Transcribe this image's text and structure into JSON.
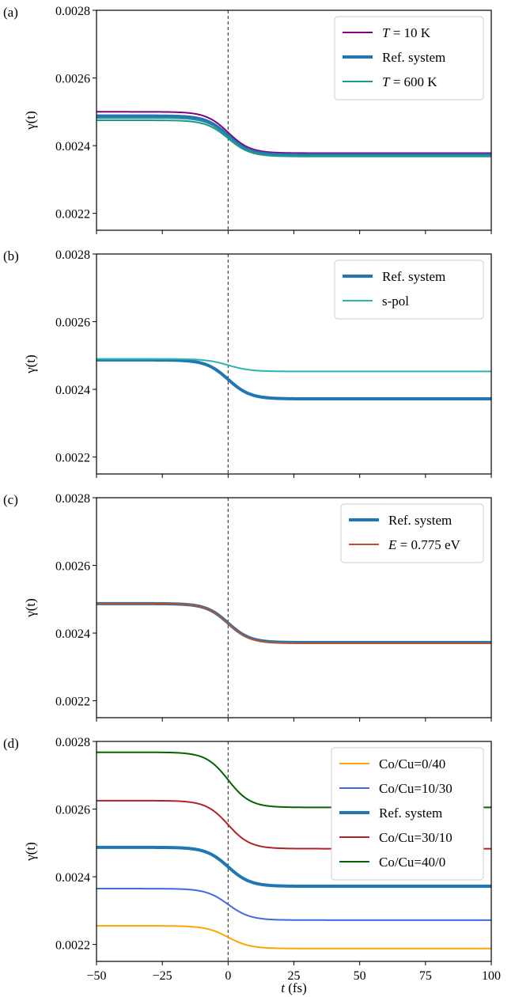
{
  "figure": {
    "xlabel": "t (fs)"
  },
  "chart_data": [
    {
      "type": "line",
      "panel_label": "(a)",
      "ylabel": "γ(t)",
      "xlim": [
        -50,
        100
      ],
      "ylim": [
        0.00215,
        0.0028
      ],
      "xticks": [
        -50,
        -25,
        0,
        25,
        50,
        75,
        100
      ],
      "yticks": [
        0.0022,
        0.0024,
        0.0026,
        0.0028
      ],
      "ytick_labels": [
        "0.0022",
        "0.0024",
        "0.0026",
        "0.0028"
      ],
      "vline_x": 0,
      "legend_position": "upper right",
      "series": [
        {
          "name": "T = 10 K",
          "color": "#800080",
          "width": 2,
          "y_before": 0.0025,
          "y_after": 0.002378,
          "legend": true,
          "label_parts": [
            [
              "T",
              true
            ],
            [
              " = 10 K",
              false
            ]
          ]
        },
        {
          "name": "",
          "color": "#4d6ab0",
          "width": 2,
          "y_before": 0.00249,
          "y_after": 0.002375,
          "legend": false
        },
        {
          "name": "Ref. system",
          "color": "#1f77b4",
          "width": 4,
          "y_before": 0.002487,
          "y_after": 0.002372,
          "legend": true,
          "label_parts": [
            [
              "Ref. system",
              false
            ]
          ]
        },
        {
          "name": "",
          "color": "#2a8f9a",
          "width": 2,
          "y_before": 0.002482,
          "y_after": 0.00237,
          "legend": false
        },
        {
          "name": "T = 600 K",
          "color": "#1a9a8a",
          "width": 2,
          "y_before": 0.002475,
          "y_after": 0.002368,
          "legend": true,
          "label_parts": [
            [
              "T",
              true
            ],
            [
              " = 600 K",
              false
            ]
          ]
        }
      ]
    },
    {
      "type": "line",
      "panel_label": "(b)",
      "ylabel": "γ(t)",
      "xlim": [
        -50,
        100
      ],
      "ylim": [
        0.00215,
        0.0028
      ],
      "xticks": [
        -50,
        -25,
        0,
        25,
        50,
        75,
        100
      ],
      "yticks": [
        0.0022,
        0.0024,
        0.0026,
        0.0028
      ],
      "ytick_labels": [
        "0.0022",
        "0.0024",
        "0.0026",
        "0.0028"
      ],
      "vline_x": 0,
      "legend_position": "upper right",
      "series": [
        {
          "name": "Ref. system",
          "color": "#1f77b4",
          "width": 4,
          "y_before": 0.002487,
          "y_after": 0.002372,
          "legend": true,
          "label_parts": [
            [
              "Ref. system",
              false
            ]
          ]
        },
        {
          "name": "s-pol",
          "color": "#2ab5b0",
          "width": 2,
          "y_before": 0.00249,
          "y_after": 0.002453,
          "legend": true,
          "label_parts": [
            [
              "s-pol",
              false
            ]
          ]
        }
      ]
    },
    {
      "type": "line",
      "panel_label": "(c)",
      "ylabel": "γ(t)",
      "xlim": [
        -50,
        100
      ],
      "ylim": [
        0.00215,
        0.0028
      ],
      "xticks": [
        -50,
        -25,
        0,
        25,
        50,
        75,
        100
      ],
      "yticks": [
        0.0022,
        0.0024,
        0.0026,
        0.0028
      ],
      "ytick_labels": [
        "0.0022",
        "0.0024",
        "0.0026",
        "0.0028"
      ],
      "vline_x": 0,
      "legend_position": "upper right",
      "series": [
        {
          "name": "Ref. system",
          "color": "#1f77b4",
          "width": 4,
          "y_before": 0.002487,
          "y_after": 0.002372,
          "legend": true,
          "label_parts": [
            [
              "Ref. system",
              false
            ]
          ]
        },
        {
          "name": "E = 0.775 eV",
          "color": "#c0502a",
          "width": 2,
          "y_before": 0.002487,
          "y_after": 0.00237,
          "legend": true,
          "label_parts": [
            [
              "E",
              true
            ],
            [
              " = 0.775 eV",
              false
            ]
          ]
        }
      ]
    },
    {
      "type": "line",
      "panel_label": "(d)",
      "ylabel": "γ(t)",
      "xlim": [
        -50,
        100
      ],
      "ylim": [
        0.00215,
        0.0028
      ],
      "xticks": [
        -50,
        -25,
        0,
        25,
        50,
        75,
        100
      ],
      "yticks": [
        0.0022,
        0.0024,
        0.0026,
        0.0028
      ],
      "ytick_labels": [
        "0.0022",
        "0.0024",
        "0.0026",
        "0.0028"
      ],
      "xtick_labels": [
        "−50",
        "−25",
        "0",
        "25",
        "50",
        "75",
        "100"
      ],
      "vline_x": 0,
      "legend_position": "upper right",
      "series": [
        {
          "name": "Co/Cu=0/40",
          "color": "#ffa500",
          "width": 2,
          "y_before": 0.002255,
          "y_after": 0.002188,
          "legend": true,
          "label_parts": [
            [
              "Co/Cu=0/40",
              false
            ]
          ]
        },
        {
          "name": "Co/Cu=10/30",
          "color": "#4169e1",
          "width": 2,
          "y_before": 0.002365,
          "y_after": 0.002272,
          "legend": true,
          "label_parts": [
            [
              "Co/Cu=10/30",
              false
            ]
          ]
        },
        {
          "name": "Ref. system",
          "color": "#1f77b4",
          "width": 4,
          "y_before": 0.002487,
          "y_after": 0.002372,
          "legend": true,
          "label_parts": [
            [
              "Ref. system",
              false
            ]
          ]
        },
        {
          "name": "Co/Cu=30/10",
          "color": "#b22222",
          "width": 2,
          "y_before": 0.002625,
          "y_after": 0.002483,
          "legend": true,
          "label_parts": [
            [
              "Co/Cu=30/10",
              false
            ]
          ]
        },
        {
          "name": "Co/Cu=40/0",
          "color": "#006400",
          "width": 2,
          "y_before": 0.002768,
          "y_after": 0.002605,
          "legend": true,
          "label_parts": [
            [
              "Co/Cu=40/0",
              false
            ]
          ]
        }
      ]
    }
  ]
}
